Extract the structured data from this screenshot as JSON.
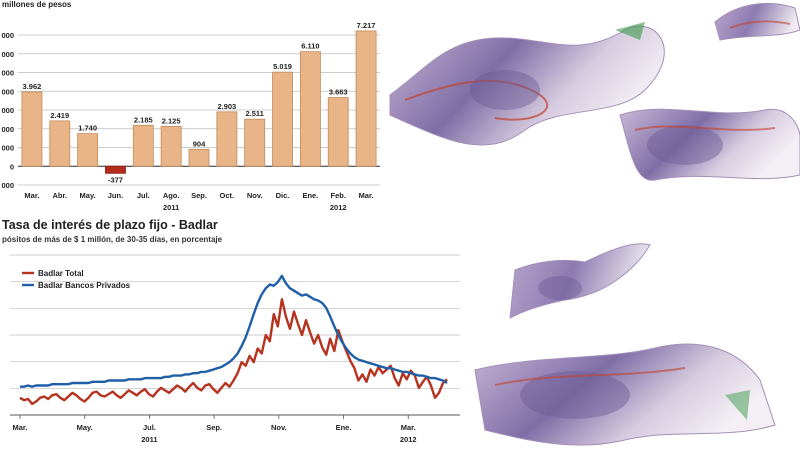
{
  "chart_data": [
    {
      "type": "bar",
      "subtitle": "millones de pesos",
      "categories": [
        "Mar.",
        "Abr.",
        "May.",
        "Jun.",
        "Jul.",
        "Ago.",
        "Sep.",
        "Oct.",
        "Nov.",
        "Dic.",
        "Ene.",
        "Feb.",
        "Mar."
      ],
      "values": [
        3962,
        2419,
        1740,
        -377,
        2185,
        2125,
        904,
        2903,
        2511,
        5019,
        6110,
        3663,
        7217
      ],
      "value_labels": [
        "3.962",
        "2.419",
        "1.740",
        "-377",
        "2.185",
        "2.125",
        "904",
        "2.903",
        "2.511",
        "5.019",
        "6.110",
        "3.663",
        "7.217"
      ],
      "year_labels": [
        {
          "text": "2011",
          "category": 5
        },
        {
          "text": "2012",
          "category": 11
        }
      ],
      "ylim": [
        -1000,
        7800
      ],
      "yticks": [
        -1000,
        0,
        1000,
        2000,
        3000,
        4000,
        5000,
        6000,
        7000
      ],
      "ytick_labels": [
        "000",
        "0",
        "000",
        "000",
        "000",
        "000",
        "000",
        "000",
        "000"
      ],
      "grid": true,
      "colors": {
        "positive": "#e8b488",
        "negative": "#b22d1e",
        "grid": "#bdbdbd",
        "edge": "#c58a58"
      }
    },
    {
      "type": "line",
      "title": "Tasa de interés de plazo fijo - Badlar",
      "subtitle": "pósitos de más de $ 1 millón, de 30-35 días, en porcentaje",
      "x_labels": [
        "Mar.",
        "May.",
        "Jul.",
        "Sep.",
        "Nov.",
        "Ene.",
        "Mar."
      ],
      "year_labels": [
        {
          "text": "2011",
          "month": 4
        },
        {
          "text": "2012",
          "month": 12
        }
      ],
      "grid": true,
      "legend_position": "top-left",
      "series": [
        {
          "name": "Badlar Total",
          "color": "#b5331f",
          "values": [
            9.4,
            9.2,
            9.3,
            8.9,
            9.1,
            9.4,
            9.5,
            9.3,
            9.6,
            9.7,
            9.4,
            9.2,
            9.5,
            9.8,
            9.6,
            9.3,
            9.1,
            9.4,
            9.8,
            9.9,
            9.6,
            9.5,
            9.7,
            9.9,
            9.6,
            9.4,
            9.7,
            10.0,
            9.8,
            9.6,
            9.9,
            10.1,
            9.7,
            9.5,
            9.9,
            10.2,
            10.0,
            9.8,
            10.1,
            10.4,
            10.2,
            9.9,
            10.3,
            10.6,
            10.2,
            10.0,
            10.4,
            10.5,
            10.1,
            9.8,
            10.2,
            10.6,
            10.3,
            10.8,
            11.4,
            12.3,
            12.0,
            12.8,
            12.3,
            13.4,
            13.0,
            14.5,
            14.0,
            16.2,
            15.2,
            17.4,
            16.0,
            15.0,
            16.4,
            15.4,
            14.5,
            15.7,
            14.7,
            13.8,
            14.5,
            13.5,
            12.9,
            14.2,
            13.2,
            14.9,
            14.0,
            13.2,
            12.4,
            11.8,
            10.8,
            11.3,
            10.7,
            11.7,
            11.2,
            11.9,
            11.4,
            11.7,
            12.0,
            11.0,
            10.4,
            11.4,
            10.9,
            11.6,
            11.2,
            10.2,
            10.7,
            11.1,
            10.4,
            9.4,
            9.8,
            10.6,
            10.9
          ]
        },
        {
          "name": "Badlar Bancos Privados",
          "color": "#1f5fa8",
          "values": [
            10.3,
            10.3,
            10.4,
            10.3,
            10.4,
            10.4,
            10.4,
            10.4,
            10.5,
            10.5,
            10.5,
            10.5,
            10.5,
            10.6,
            10.6,
            10.6,
            10.6,
            10.6,
            10.7,
            10.7,
            10.7,
            10.7,
            10.8,
            10.8,
            10.8,
            10.8,
            10.8,
            10.9,
            10.9,
            10.9,
            10.9,
            11.0,
            11.0,
            11.0,
            11.0,
            11.0,
            11.1,
            11.1,
            11.2,
            11.2,
            11.2,
            11.3,
            11.3,
            11.4,
            11.4,
            11.5,
            11.5,
            11.6,
            11.7,
            11.8,
            11.9,
            12.1,
            12.3,
            12.6,
            13.0,
            13.6,
            14.3,
            15.2,
            16.2,
            17.1,
            17.8,
            18.3,
            18.6,
            18.5,
            18.8,
            19.3,
            18.7,
            18.3,
            18.1,
            17.9,
            17.7,
            17.8,
            17.6,
            17.4,
            17.3,
            17.1,
            16.7,
            16.0,
            15.2,
            14.5,
            13.9,
            13.4,
            13.0,
            12.7,
            12.5,
            12.4,
            12.3,
            12.2,
            12.1,
            12.0,
            11.9,
            11.8,
            11.8,
            11.7,
            11.6,
            11.5,
            11.5,
            11.4,
            11.3,
            11.2,
            11.2,
            11.1,
            11.0,
            11.0,
            10.9,
            10.8,
            10.6
          ]
        }
      ],
      "ylim": [
        8,
        21
      ],
      "colors": {
        "grid": "#bdbdbd",
        "axis": "#555555"
      }
    }
  ]
}
